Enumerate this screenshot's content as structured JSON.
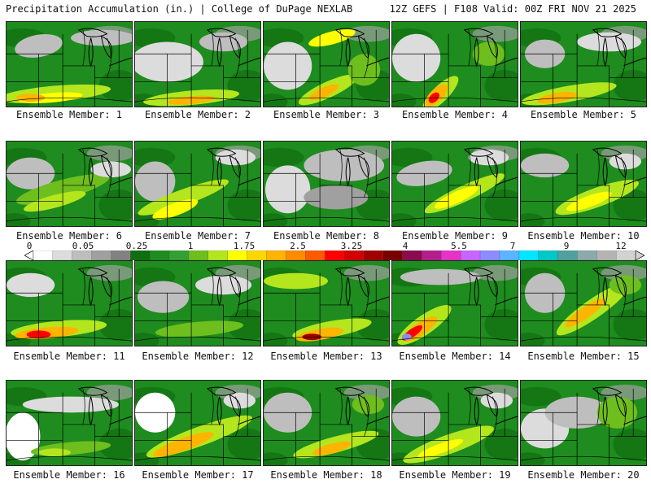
{
  "header": {
    "title": "Precipitation Accumulation (in.) | College of DuPage NEXLAB",
    "run_info": "12Z GEFS | F108 Valid: 00Z FRI NOV 21 2025"
  },
  "colors": {
    "background": "#ffffff",
    "border": "#222222"
  },
  "colorbar": {
    "tick_labels": [
      "0",
      "0.05",
      "0.25",
      "1",
      "1.75",
      "2.5",
      "3.25",
      "4",
      "5.5",
      "7",
      "9",
      "12"
    ],
    "colors": [
      "#ffffff",
      "#dcdcdc",
      "#bebebe",
      "#a0a0a0",
      "#828282",
      "#0f6e0f",
      "#1e8c1e",
      "#32a032",
      "#6ebe1e",
      "#b4e61e",
      "#ffff00",
      "#ffd700",
      "#ffb400",
      "#ff8c00",
      "#ff5a00",
      "#ff0000",
      "#d20000",
      "#a00000",
      "#780000",
      "#8b0a50",
      "#b41e8c",
      "#e632c8",
      "#c864ff",
      "#8c8cff",
      "#5ab4ff",
      "#00e6ff",
      "#00c8c8",
      "#50a0a0",
      "#8caaaa",
      "#b4b4b4",
      "#d2d2d2"
    ]
  },
  "panels": [
    {
      "label": "Ensemble Member: 1"
    },
    {
      "label": "Ensemble Member: 2"
    },
    {
      "label": "Ensemble Member: 3"
    },
    {
      "label": "Ensemble Member: 4"
    },
    {
      "label": "Ensemble Member: 5"
    },
    {
      "label": "Ensemble Member: 6"
    },
    {
      "label": "Ensemble Member: 7"
    },
    {
      "label": "Ensemble Member: 8"
    },
    {
      "label": "Ensemble Member: 9"
    },
    {
      "label": "Ensemble Member: 10"
    },
    {
      "label": "Ensemble Member: 11"
    },
    {
      "label": "Ensemble Member: 12"
    },
    {
      "label": "Ensemble Member: 13"
    },
    {
      "label": "Ensemble Member: 14"
    },
    {
      "label": "Ensemble Member: 15"
    },
    {
      "label": "Ensemble Member: 16"
    },
    {
      "label": "Ensemble Member: 17"
    },
    {
      "label": "Ensemble Member: 18"
    },
    {
      "label": "Ensemble Member: 19"
    },
    {
      "label": "Ensemble Member: 20"
    }
  ]
}
